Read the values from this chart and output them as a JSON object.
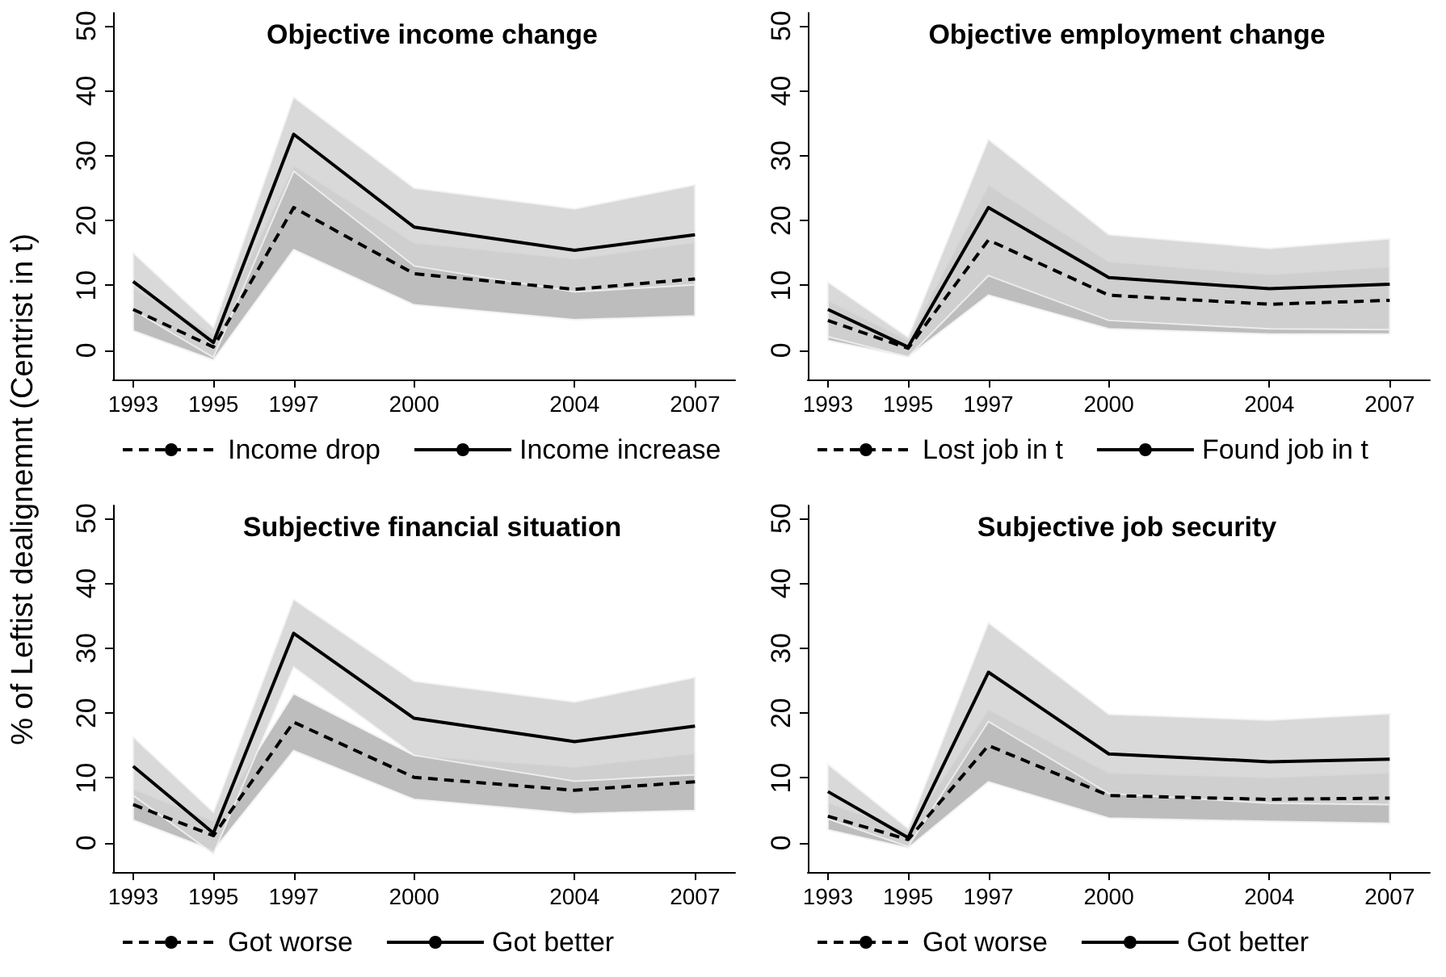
{
  "chart_data": [
    {
      "type": "line",
      "title": "Objective income change",
      "ylabel": "% of Leftist dealignemnt (Centrist in t)",
      "x": [
        1993,
        1995,
        1997,
        2000,
        2004,
        2007
      ],
      "xlim": [
        1992.5,
        2008
      ],
      "xticks": [
        1993,
        1995,
        1997,
        2000,
        2004,
        2007
      ],
      "ylim": [
        -4.5,
        52
      ],
      "yticks": [
        0,
        10,
        20,
        30,
        40,
        50
      ],
      "grid": false,
      "legend": "bottom",
      "marker": "none",
      "series": [
        {
          "name": "Income drop",
          "color": "#000000",
          "line_style": "dashed",
          "values": [
            6.3,
            0.5,
            22,
            11.8,
            9.4,
            11
          ],
          "lower": [
            3,
            -1.5,
            15.5,
            7,
            4.7,
            5.3
          ],
          "upper": [
            9.6,
            2.5,
            28.5,
            16.6,
            14.1,
            16.7
          ]
        },
        {
          "name": "Income increase",
          "color": "#000000",
          "line_style": "solid",
          "values": [
            10.6,
            1.2,
            33.3,
            19,
            15.4,
            17.8
          ],
          "lower": [
            6.2,
            -1.1,
            27.6,
            13,
            9,
            10.1
          ],
          "upper": [
            15,
            3.5,
            39,
            25,
            21.8,
            25.5
          ]
        }
      ]
    },
    {
      "type": "line",
      "title": "Objective employment change",
      "x": [
        1993,
        1995,
        1997,
        2000,
        2004,
        2007
      ],
      "xlim": [
        1992.5,
        2008
      ],
      "xticks": [
        1993,
        1995,
        1997,
        2000,
        2004,
        2007
      ],
      "ylim": [
        -4.5,
        52
      ],
      "yticks": [
        0,
        10,
        20,
        30,
        40,
        50
      ],
      "grid": false,
      "legend": "bottom",
      "marker": "none",
      "series": [
        {
          "name": "Lost job in t",
          "color": "#000000",
          "line_style": "dashed",
          "values": [
            4.6,
            0.3,
            17,
            8.5,
            7.1,
            7.7
          ],
          "lower": [
            1.5,
            -1,
            8.5,
            3.3,
            2.5,
            2.5
          ],
          "upper": [
            7.7,
            1.6,
            25.5,
            13.7,
            11.7,
            12.9
          ]
        },
        {
          "name": "Found job in t",
          "color": "#000000",
          "line_style": "solid",
          "values": [
            6.3,
            0.5,
            22,
            11.2,
            9.5,
            10.2
          ],
          "lower": [
            2.1,
            -1,
            11.5,
            4.6,
            3.3,
            3.2
          ],
          "upper": [
            10.5,
            2,
            32.5,
            17.8,
            15.7,
            17.2
          ]
        }
      ]
    },
    {
      "type": "line",
      "title": "Subjective financial situation",
      "x": [
        1993,
        1995,
        1997,
        2000,
        2004,
        2007
      ],
      "xlim": [
        1992.5,
        2008
      ],
      "xticks": [
        1993,
        1995,
        1997,
        2000,
        2004,
        2007
      ],
      "ylim": [
        -4.5,
        52
      ],
      "yticks": [
        0,
        10,
        20,
        30,
        40,
        50
      ],
      "grid": false,
      "legend": "bottom",
      "marker": "none",
      "series": [
        {
          "name": "Got worse",
          "color": "#000000",
          "line_style": "dashed",
          "values": [
            5.9,
            1.1,
            18.6,
            10.1,
            8.1,
            9.4
          ],
          "lower": [
            3.5,
            -1.2,
            14.2,
            6.7,
            4.5,
            5
          ],
          "upper": [
            8.3,
            3.4,
            23,
            13.5,
            11.7,
            13.8
          ]
        },
        {
          "name": "Got better",
          "color": "#000000",
          "line_style": "solid",
          "values": [
            11.8,
            1.5,
            32.3,
            19.2,
            15.6,
            18
          ],
          "lower": [
            7.3,
            -1.7,
            27.1,
            13.5,
            9.5,
            10.5
          ],
          "upper": [
            16.3,
            4.7,
            37.5,
            24.9,
            21.7,
            25.5
          ]
        }
      ]
    },
    {
      "type": "line",
      "title": "Subjective job security",
      "x": [
        1993,
        1995,
        1997,
        2000,
        2004,
        2007
      ],
      "xlim": [
        1992.5,
        2008
      ],
      "xticks": [
        1993,
        1995,
        1997,
        2000,
        2004,
        2007
      ],
      "ylim": [
        -4.5,
        52
      ],
      "yticks": [
        0,
        10,
        20,
        30,
        40,
        50
      ],
      "grid": false,
      "legend": "bottom",
      "marker": "none",
      "series": [
        {
          "name": "Got worse",
          "color": "#000000",
          "line_style": "dashed",
          "values": [
            4.1,
            0.5,
            15,
            7.3,
            6.7,
            6.9
          ],
          "lower": [
            2,
            -0.8,
            9.4,
            3.8,
            3.3,
            3
          ],
          "upper": [
            6.2,
            1.8,
            20.6,
            10.8,
            10.1,
            10.8
          ]
        },
        {
          "name": "Got better",
          "color": "#000000",
          "line_style": "solid",
          "values": [
            7.9,
            0.8,
            26.3,
            13.7,
            12.5,
            12.9
          ],
          "lower": [
            3.7,
            -0.6,
            18.7,
            7.6,
            6.1,
            5.9
          ],
          "upper": [
            12.1,
            2.2,
            33.9,
            19.8,
            18.9,
            19.9
          ]
        }
      ]
    }
  ]
}
